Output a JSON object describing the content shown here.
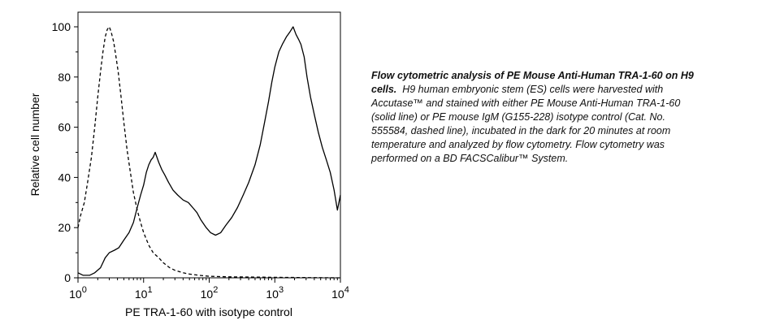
{
  "chart_data": {
    "type": "line",
    "title": "",
    "xlabel": "PE TRA-1-60 with isotype control",
    "ylabel": "Relative cell number",
    "xscale": "log",
    "xlim": [
      1,
      10000
    ],
    "ylim": [
      0,
      100
    ],
    "x_ticks": [
      {
        "value": 1,
        "base": "10",
        "exp": "0"
      },
      {
        "value": 10,
        "base": "10",
        "exp": "1"
      },
      {
        "value": 100,
        "base": "10",
        "exp": "2"
      },
      {
        "value": 1000,
        "base": "10",
        "exp": "3"
      },
      {
        "value": 10000,
        "base": "10",
        "exp": "4"
      }
    ],
    "y_ticks": [
      "0",
      "20",
      "40",
      "60",
      "80",
      "100"
    ],
    "grid": false,
    "series": [
      {
        "style": "solid",
        "color": "#000000",
        "x": [
          1,
          1.2,
          1.5,
          1.8,
          2.2,
          2.6,
          3.0,
          3.6,
          4.2,
          5,
          6,
          7,
          8,
          9,
          10,
          11,
          12,
          13,
          14,
          15,
          17,
          19,
          21,
          24,
          28,
          33,
          40,
          48,
          56,
          65,
          75,
          90,
          105,
          125,
          150,
          180,
          220,
          270,
          330,
          400,
          500,
          600,
          700,
          800,
          900,
          1000,
          1150,
          1300,
          1500,
          1700,
          1900,
          2100,
          2300,
          2500,
          2800,
          3100,
          3500,
          4000,
          4600,
          5300,
          6100,
          7000,
          8000,
          9000,
          10000
        ],
        "y": [
          2,
          1,
          1,
          2,
          4,
          8,
          10,
          11,
          12,
          15,
          18,
          22,
          28,
          33,
          37,
          42,
          45,
          47,
          48,
          50,
          46,
          43,
          41,
          38,
          35,
          33,
          31,
          30,
          28,
          26,
          23,
          20,
          18,
          17,
          18,
          21,
          24,
          28,
          33,
          38,
          45,
          53,
          62,
          70,
          78,
          84,
          90,
          93,
          96,
          98,
          100,
          97,
          95,
          93,
          88,
          80,
          72,
          65,
          58,
          52,
          47,
          42,
          35,
          27,
          33
        ]
      },
      {
        "style": "dashed",
        "color": "#000000",
        "x": [
          1,
          1.1,
          1.25,
          1.4,
          1.6,
          1.8,
          2.0,
          2.2,
          2.4,
          2.6,
          2.8,
          3.0,
          3.2,
          3.5,
          3.8,
          4.1,
          4.5,
          5,
          5.6,
          6.3,
          7,
          8,
          9,
          10,
          12,
          14,
          17,
          20,
          25,
          30,
          40,
          50,
          70,
          100,
          200,
          500,
          1000,
          3000,
          10000
        ],
        "y": [
          20,
          25,
          30,
          38,
          48,
          60,
          72,
          82,
          90,
          96,
          99,
          100,
          98,
          94,
          88,
          82,
          73,
          62,
          51,
          42,
          34,
          27,
          22,
          18,
          13,
          10,
          8,
          6,
          4,
          3,
          2,
          1.5,
          1,
          0.6,
          0.4,
          0.3,
          0.2,
          0.1,
          0
        ]
      }
    ]
  },
  "caption": {
    "bold": "Flow cytometric analysis of PE Mouse Anti-Human TRA-1-60 on H9 cells.",
    "body": "H9 human embryonic stem (ES) cells were harvested with Accutase™ and stained with either PE Mouse Anti-Human TRA-1-60 (solid line) or PE mouse IgM (G155-228) isotype control (Cat. No. 555584, dashed line), incubated in the dark for 20 minutes at room temperature and analyzed by flow cytometry. Flow cytometry was performed on a BD FACSCalibur™ System."
  }
}
